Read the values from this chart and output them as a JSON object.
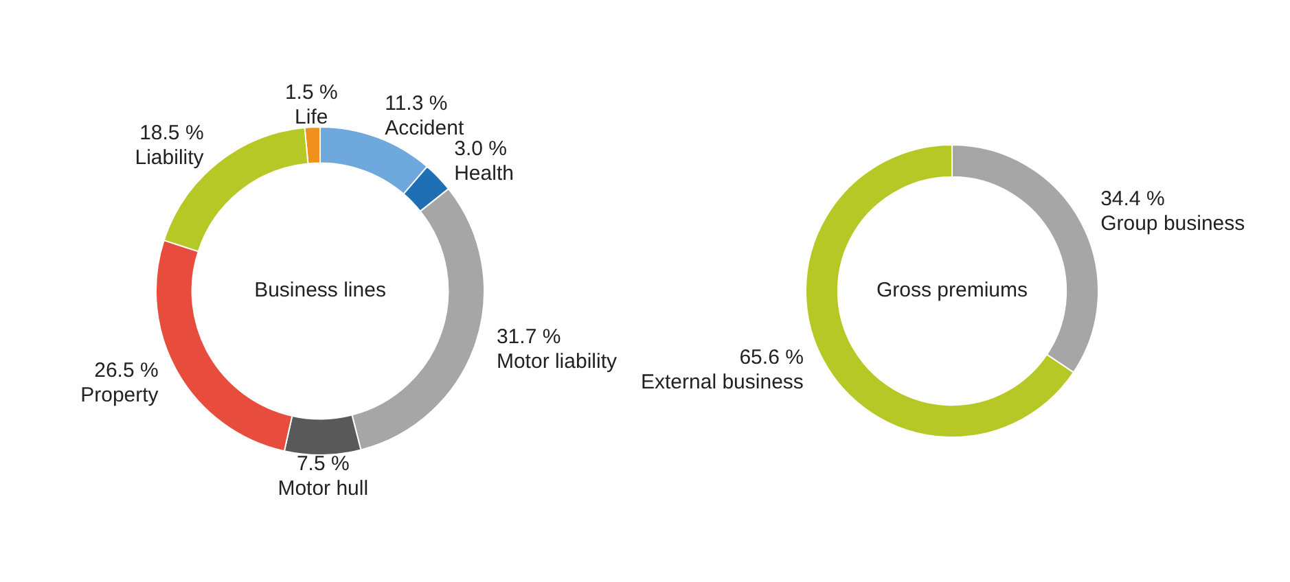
{
  "chart_data": [
    {
      "type": "donut",
      "title": "Business lines",
      "categories": [
        "Life",
        "Accident",
        "Health",
        "Motor liability",
        "Motor hull",
        "Property",
        "Liability"
      ],
      "values": [
        1.5,
        11.3,
        3.0,
        31.7,
        7.5,
        26.5,
        18.5
      ],
      "value_labels": [
        "1.5 %",
        "11.3 %",
        "3.0 %",
        "31.7 %",
        "7.5 %",
        "26.5 %",
        "18.5 %"
      ],
      "colors": [
        "#f0901e",
        "#6fa8dc",
        "#1f6fb5",
        "#a6a6a6",
        "#595959",
        "#e84c3d",
        "#b5c826"
      ],
      "legend": false
    },
    {
      "type": "donut",
      "title": "Gross premiums",
      "categories": [
        "Group business",
        "External business"
      ],
      "values": [
        34.4,
        65.6
      ],
      "value_labels": [
        "34.4 %",
        "65.6 %"
      ],
      "colors": [
        "#a6a6a6",
        "#b5c826"
      ],
      "legend": false
    }
  ]
}
